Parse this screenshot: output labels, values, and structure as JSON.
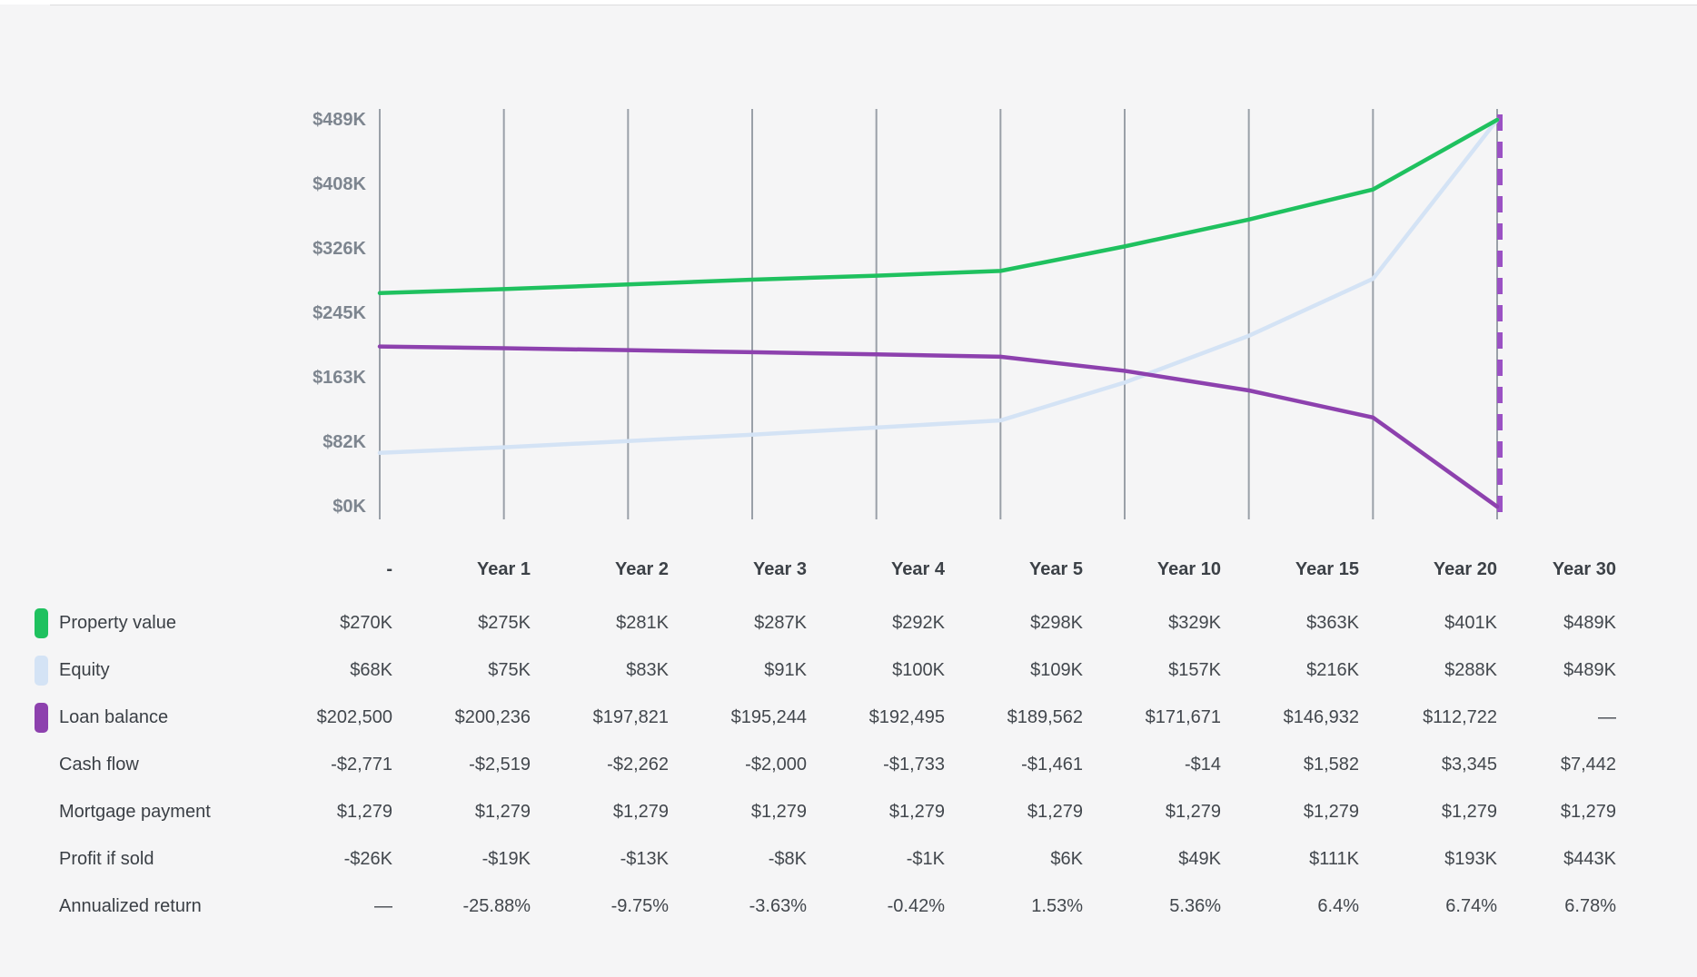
{
  "page": {
    "background": "#f5f5f6",
    "divider_color": "#dcdcde"
  },
  "chart_data": {
    "type": "line",
    "title": "",
    "xlabel": "",
    "ylabel": "",
    "categories": [
      "-",
      "Year 1",
      "Year 2",
      "Year 3",
      "Year 4",
      "Year 5",
      "Year 10",
      "Year 15",
      "Year 20",
      "Year 30"
    ],
    "y_ticks": [
      {
        "label": "$489K",
        "value": 489
      },
      {
        "label": "$408K",
        "value": 408
      },
      {
        "label": "$326K",
        "value": 326
      },
      {
        "label": "$245K",
        "value": 245
      },
      {
        "label": "$163K",
        "value": 163
      },
      {
        "label": "$82K",
        "value": 82
      },
      {
        "label": "$0K",
        "value": 0
      }
    ],
    "ylim": [
      0,
      489
    ],
    "grid": "vertical-only",
    "gridline_color": "#9aa0a8",
    "legend_position": "table-row-chips",
    "series": [
      {
        "name": "Property value",
        "color": "#1fc15f",
        "values_k": [
          270,
          275,
          281,
          287,
          292,
          298,
          329,
          363,
          401,
          489
        ]
      },
      {
        "name": "Equity",
        "color": "#d4e3f5",
        "values_k": [
          68,
          75,
          83,
          91,
          100,
          109,
          157,
          216,
          288,
          489
        ]
      },
      {
        "name": "Loan balance",
        "color": "#8d41ae",
        "values_k": [
          202.5,
          200.236,
          197.821,
          195.244,
          192.495,
          189.562,
          171.671,
          146.932,
          112.722,
          0
        ]
      }
    ],
    "annotations": [
      {
        "type": "dashed-vertical-line",
        "at_category": "Year 30",
        "color": "#9b51c4"
      }
    ]
  },
  "table": {
    "columns": [
      "-",
      "Year 1",
      "Year 2",
      "Year 3",
      "Year 4",
      "Year 5",
      "Year 10",
      "Year 15",
      "Year 20",
      "Year 30"
    ],
    "rows": [
      {
        "label": "Property value",
        "chip_color": "#1fc15f",
        "values": [
          "$270K",
          "$275K",
          "$281K",
          "$287K",
          "$292K",
          "$298K",
          "$329K",
          "$363K",
          "$401K",
          "$489K"
        ]
      },
      {
        "label": "Equity",
        "chip_color": "#d4e3f5",
        "values": [
          "$68K",
          "$75K",
          "$83K",
          "$91K",
          "$100K",
          "$109K",
          "$157K",
          "$216K",
          "$288K",
          "$489K"
        ]
      },
      {
        "label": "Loan balance",
        "chip_color": "#8d41ae",
        "values": [
          "$202,500",
          "$200,236",
          "$197,821",
          "$195,244",
          "$192,495",
          "$189,562",
          "$171,671",
          "$146,932",
          "$112,722",
          "—"
        ]
      },
      {
        "label": "Cash flow",
        "chip_color": null,
        "values": [
          "-$2,771",
          "-$2,519",
          "-$2,262",
          "-$2,000",
          "-$1,733",
          "-$1,461",
          "-$14",
          "$1,582",
          "$3,345",
          "$7,442"
        ]
      },
      {
        "label": "Mortgage payment",
        "chip_color": null,
        "values": [
          "$1,279",
          "$1,279",
          "$1,279",
          "$1,279",
          "$1,279",
          "$1,279",
          "$1,279",
          "$1,279",
          "$1,279",
          "$1,279"
        ]
      },
      {
        "label": "Profit if sold",
        "chip_color": null,
        "values": [
          "-$26K",
          "-$19K",
          "-$13K",
          "-$8K",
          "-$1K",
          "$6K",
          "$49K",
          "$111K",
          "$193K",
          "$443K"
        ]
      },
      {
        "label": "Annualized return",
        "chip_color": null,
        "values": [
          "—",
          "-25.88%",
          "-9.75%",
          "-3.63%",
          "-0.42%",
          "1.53%",
          "5.36%",
          "6.4%",
          "6.74%",
          "6.78%"
        ]
      }
    ]
  }
}
